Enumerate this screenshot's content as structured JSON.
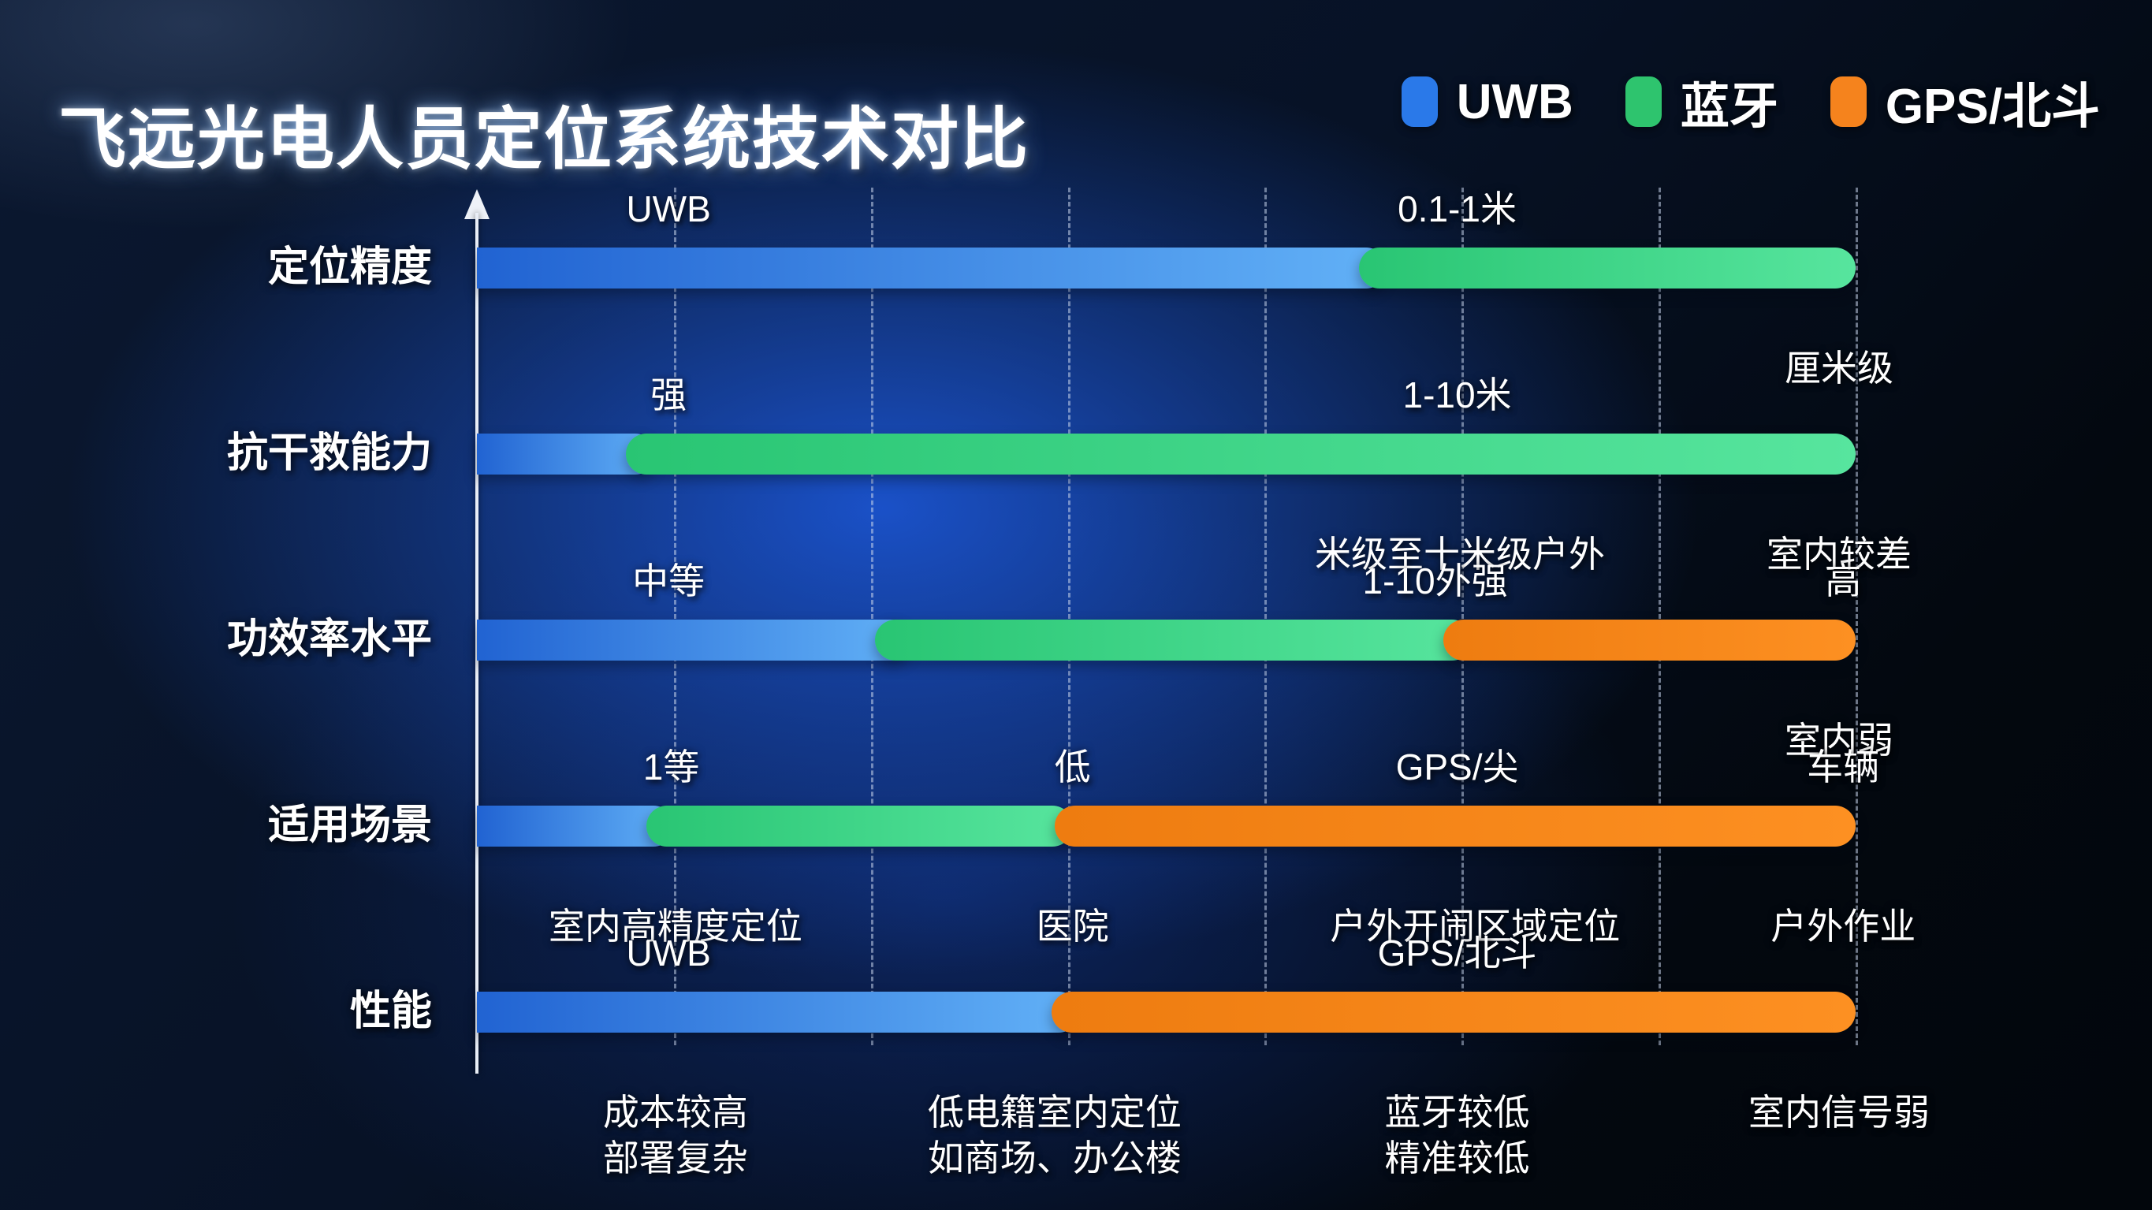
{
  "title": "飞远光电人员定位系统技术对比",
  "legend": {
    "items": [
      {
        "label": "UWB",
        "color": "#2a79e9"
      },
      {
        "label": "蓝牙",
        "color": "#2ec46e"
      },
      {
        "label": "GPS/北斗",
        "color": "#f5831d"
      }
    ]
  },
  "chart_data": {
    "type": "bar",
    "orientation": "horizontal-stacked-comparison",
    "grid": {
      "shown": true,
      "divisions": 7,
      "style": "dashed-vertical"
    },
    "legend_position": "top-right",
    "series": [
      {
        "name": "UWB",
        "gradient": [
          "#2163d2",
          "#62b1f7"
        ]
      },
      {
        "name": "蓝牙",
        "gradient": [
          "#29c573",
          "#57e59e"
        ]
      },
      {
        "name": "GPS/北斗",
        "gradient": [
          "#ee7c10",
          "#fd9022"
        ]
      }
    ],
    "rows": [
      {
        "category": "定位精度",
        "segments": [
          {
            "series": "UWB",
            "from": 0.0,
            "to": 0.66
          },
          {
            "series": "蓝牙",
            "from": 0.64,
            "to": 1.0
          }
        ],
        "labels_above": [
          {
            "text": "UWB",
            "x": 0.139
          },
          {
            "text": "0.1-1米",
            "x": 0.711
          }
        ],
        "labels_below": [
          {
            "text": "厘米级",
            "x": 0.988
          }
        ]
      },
      {
        "category": "抗干救能力",
        "segments": [
          {
            "series": "UWB",
            "from": 0.0,
            "to": 0.13
          },
          {
            "series": "蓝牙",
            "from": 0.108,
            "to": 1.0
          }
        ],
        "labels_above": [
          {
            "text": "强",
            "x": 0.139
          },
          {
            "text": "1-10米",
            "x": 0.711
          }
        ],
        "labels_below": [
          {
            "text": "米级至十米级户外",
            "x": 0.713
          },
          {
            "text": "室内较差",
            "x": 0.988
          }
        ]
      },
      {
        "category": "功效率水平",
        "segments": [
          {
            "series": "UWB",
            "from": 0.0,
            "to": 0.315
          },
          {
            "series": "蓝牙",
            "from": 0.289,
            "to": 0.722
          },
          {
            "series": "GPS/北斗",
            "from": 0.701,
            "to": 1.0
          }
        ],
        "labels_above": [
          {
            "text": "中等",
            "x": 0.139
          },
          {
            "text": "1-10外强",
            "x": 0.695
          },
          {
            "text": "高",
            "x": 0.991
          }
        ],
        "labels_below": [
          {
            "text": "室内弱",
            "x": 0.988
          }
        ]
      },
      {
        "category": "适用场景",
        "segments": [
          {
            "series": "UWB",
            "from": 0.0,
            "to": 0.143
          },
          {
            "series": "蓝牙",
            "from": 0.123,
            "to": 0.432
          },
          {
            "series": "GPS/北斗",
            "from": 0.419,
            "to": 1.0
          }
        ],
        "labels_above": [
          {
            "text": "1等",
            "x": 0.141
          },
          {
            "text": "低",
            "x": 0.432
          },
          {
            "text": "GPS/尖",
            "x": 0.711
          },
          {
            "text": "车辆",
            "x": 0.991
          }
        ],
        "labels_below": [
          {
            "text": "室内高精度定位",
            "x": 0.144
          },
          {
            "text": "医院",
            "x": 0.432
          },
          {
            "text": "户外开闹区域定位",
            "x": 0.724
          },
          {
            "text": "户外作业",
            "x": 0.991
          }
        ]
      },
      {
        "category": "性能",
        "segments": [
          {
            "series": "UWB",
            "from": 0.0,
            "to": 0.437
          },
          {
            "series": "GPS/北斗",
            "from": 0.417,
            "to": 1.0
          }
        ],
        "labels_above": [
          {
            "text": "UWB",
            "x": 0.139
          },
          {
            "text": "GPS/北斗",
            "x": 0.711
          }
        ],
        "labels_below": [
          {
            "text": "成本较高\n部署复杂",
            "x": 0.144
          },
          {
            "text": "低电籍室内定位\n如商场、办公楼",
            "x": 0.419
          },
          {
            "text": "蓝牙较低\n精准较低",
            "x": 0.711
          },
          {
            "text": "室内信号弱",
            "x": 0.988
          }
        ]
      }
    ]
  }
}
